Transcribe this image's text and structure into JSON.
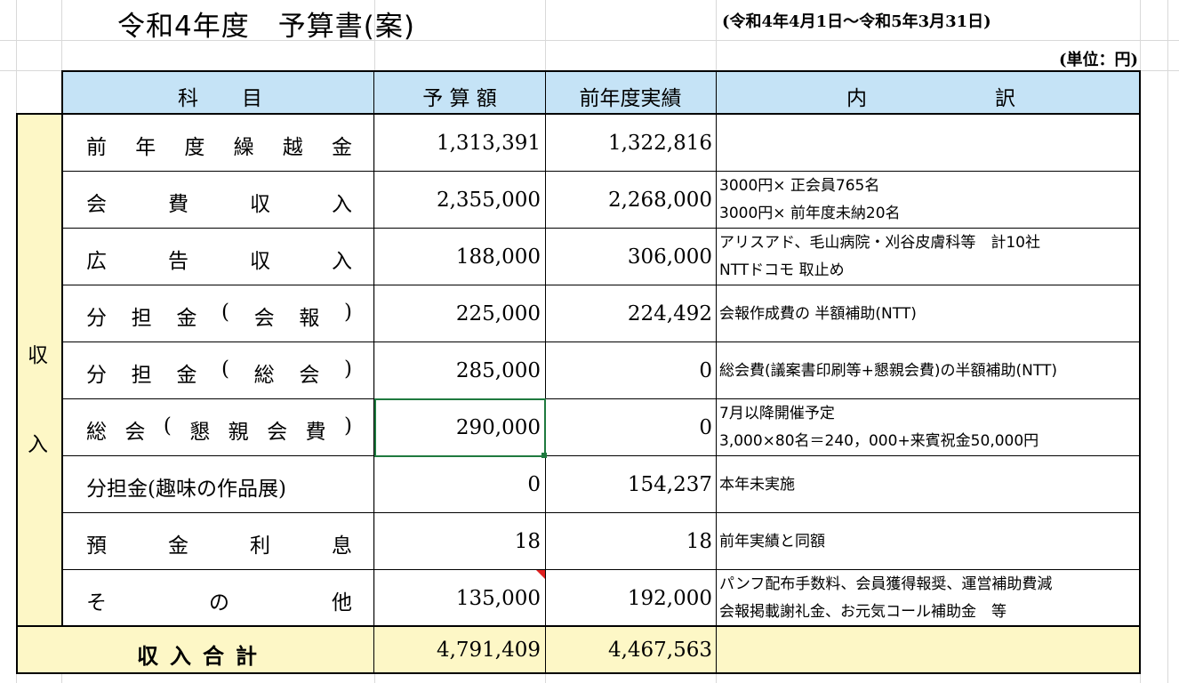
{
  "title": "令和4年度　予算書(案)",
  "period": "(令和4年4月1日～令和5年3月31日)",
  "unit": "(単位：円)",
  "headers": {
    "subject": [
      "科",
      "目"
    ],
    "budget": "予 算 額",
    "prev": "前年度実績",
    "details": [
      "内",
      "訳"
    ]
  },
  "side_label": [
    "収",
    "入"
  ],
  "rows": [
    {
      "subject": [
        "前",
        "年",
        "度",
        "繰",
        "越",
        "金"
      ],
      "budget": "1,313,391",
      "prev": "1,322,816",
      "notes": []
    },
    {
      "subject": [
        "会",
        "費",
        "収",
        "入"
      ],
      "budget": "2,355,000",
      "prev": "2,268,000",
      "notes": [
        "3000円× 正会員765名",
        "3000円× 前年度未納20名"
      ]
    },
    {
      "subject": [
        "広",
        "告",
        "収",
        "入"
      ],
      "budget": "188,000",
      "prev": "306,000",
      "notes": [
        "アリスアド、毛山病院・刈谷皮膚科等　計10社",
        "NTTドコモ 取止め"
      ]
    },
    {
      "subject": [
        "分",
        "担",
        "金",
        "(",
        "会",
        "報",
        ")"
      ],
      "budget": "225,000",
      "prev": "224,492",
      "notes": [
        "会報作成費の 半額補助(NTT)"
      ]
    },
    {
      "subject": [
        "分",
        "担",
        "金",
        "(",
        "総",
        "会",
        ")"
      ],
      "budget": "285,000",
      "prev": "0",
      "notes": [
        "総会費(議案書印刷等+懇親会費)の半額補助(NTT)"
      ]
    },
    {
      "subject": [
        "総",
        "会",
        "(",
        "懇",
        "親",
        "会",
        "費",
        ")"
      ],
      "budget": "290,000",
      "prev": "0",
      "notes": [
        "7月以降開催予定",
        "3,000×80名＝240，000+来賓祝金50,000円"
      ]
    },
    {
      "subject": [
        "分担金(趣味の作品展)"
      ],
      "budget": "0",
      "prev": "154,237",
      "notes": [
        "本年未実施"
      ]
    },
    {
      "subject": [
        "預",
        "金",
        "利",
        "息"
      ],
      "budget": "18",
      "prev": "18",
      "notes": [
        "前年実績と同額"
      ]
    },
    {
      "subject": [
        "そ",
        "の",
        "他"
      ],
      "budget": "135,000",
      "prev": "192,000",
      "notes": [
        "パンフ配布手数料、会員獲得報奨、運営補助費減",
        "会報掲載謝礼金、お元気コール補助金　等"
      ]
    }
  ],
  "total": {
    "label": "収入合計",
    "budget": "4,791,409",
    "prev": "4,467,563"
  },
  "colors": {
    "header_bg": "#c5e3f6",
    "total_bg": "#fdf7c6",
    "selection": "#1f7a3f"
  }
}
